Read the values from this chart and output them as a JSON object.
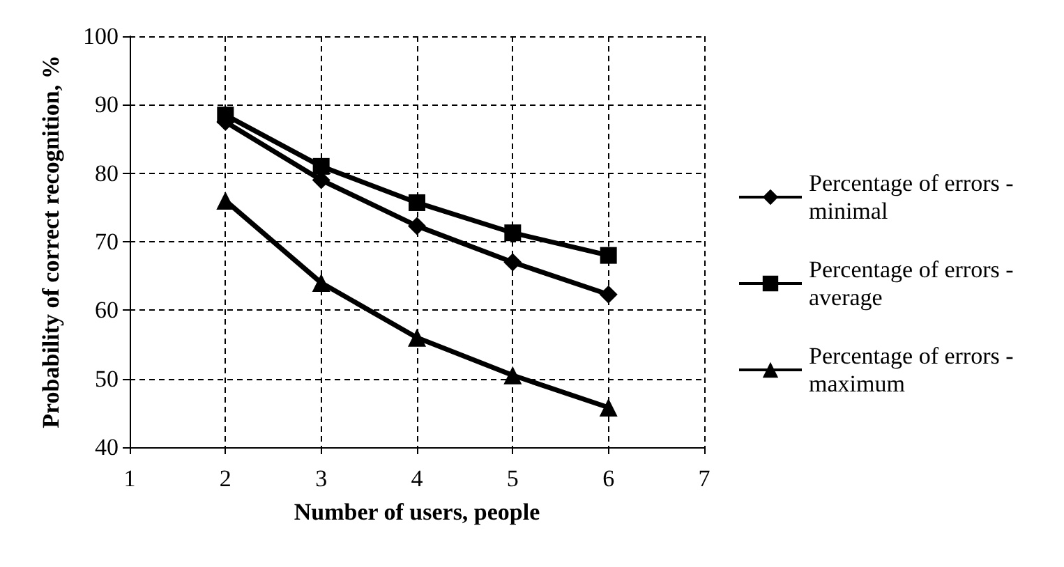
{
  "chart_data": {
    "type": "line",
    "xlabel": "Number of users, people",
    "ylabel": "Probability of correct recognition, %",
    "x": [
      2,
      3,
      4,
      5,
      6
    ],
    "series": [
      {
        "name": "Percentage of errors - minimal",
        "color": "#000000",
        "marker": "diamond",
        "values": [
          87.5,
          79,
          72.3,
          67,
          62.3
        ]
      },
      {
        "name": "Percentage of errors - average",
        "color": "#000000",
        "marker": "square",
        "values": [
          88.5,
          81,
          75.7,
          71.3,
          68
        ]
      },
      {
        "name": "Percentage of errors - maximum",
        "color": "#000000",
        "marker": "triangle",
        "values": [
          76,
          64,
          56,
          50.5,
          45.8
        ]
      }
    ],
    "xlim": [
      1,
      7
    ],
    "xticks": [
      1,
      2,
      3,
      4,
      5,
      6,
      7
    ],
    "ylim": [
      40,
      100
    ],
    "yticks": [
      40,
      50,
      60,
      70,
      80,
      90,
      100
    ],
    "grid": true,
    "legend": "right",
    "line_style": "solid"
  }
}
